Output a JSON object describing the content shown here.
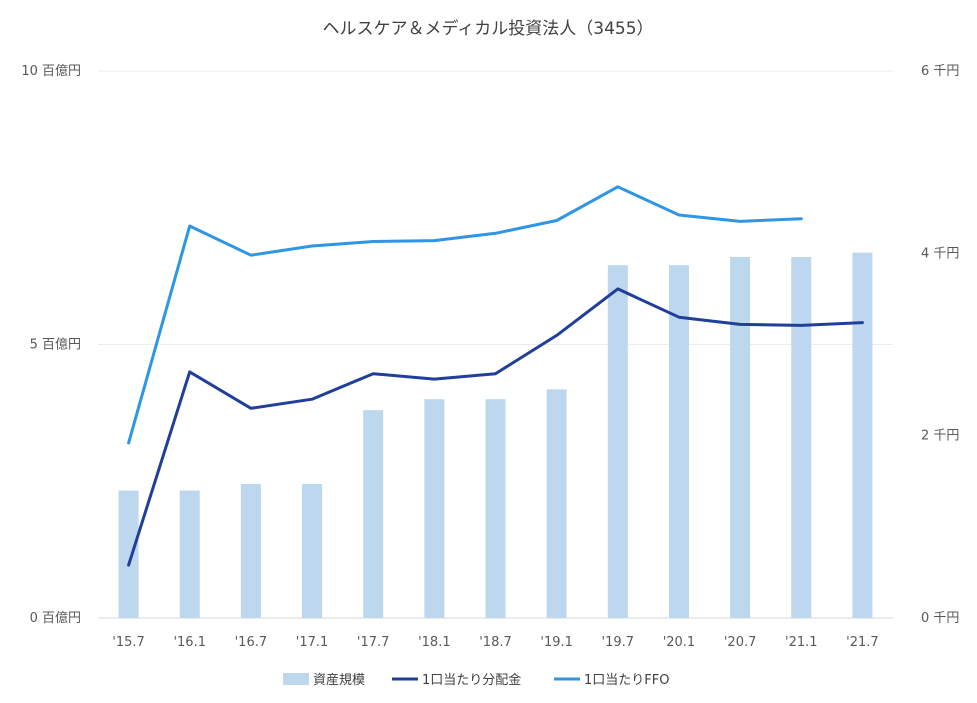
{
  "chart_data": {
    "type": "bar",
    "title": "ヘルスケア＆メディカル投資法人（3455）",
    "categories": [
      "'15.7",
      "'16.1",
      "'16.7",
      "'17.1",
      "'17.7",
      "'18.1",
      "'18.7",
      "'19.1",
      "'19.7",
      "'20.1",
      "'20.7",
      "'21.1",
      "'21.7"
    ],
    "y_left": {
      "ticks": [
        0,
        5,
        10
      ],
      "tick_labels": [
        "0 百億円",
        "5 百億円",
        "10 百億円"
      ],
      "ylim": [
        0,
        10
      ]
    },
    "y_right": {
      "ticks": [
        0,
        2,
        4,
        6
      ],
      "tick_labels": [
        "0 千円",
        "2 千円",
        "4 千円",
        "6 千円"
      ],
      "ylim": [
        0,
        6
      ]
    },
    "grid": true,
    "legend_position": "bottom",
    "series": [
      {
        "name": "資産規模",
        "kind": "bar",
        "axis": "left",
        "color": "#BDD7EE",
        "values": [
          2.33,
          2.33,
          2.45,
          2.45,
          3.8,
          4.0,
          4.0,
          4.18,
          6.45,
          6.45,
          6.6,
          6.6,
          6.68
        ]
      },
      {
        "name": "1口当たり分配金",
        "kind": "line",
        "axis": "right",
        "color": "#1F3F9B",
        "values": [
          0.58,
          2.7,
          2.3,
          2.4,
          2.68,
          2.62,
          2.68,
          3.1,
          3.61,
          3.3,
          3.22,
          3.21,
          3.24
        ]
      },
      {
        "name": "1口当たりFFO",
        "kind": "line",
        "axis": "right",
        "color": "#2E96E5",
        "values": [
          1.92,
          4.3,
          3.98,
          4.08,
          4.13,
          4.14,
          4.22,
          4.36,
          4.73,
          4.42,
          4.35,
          4.38,
          null
        ]
      }
    ]
  }
}
